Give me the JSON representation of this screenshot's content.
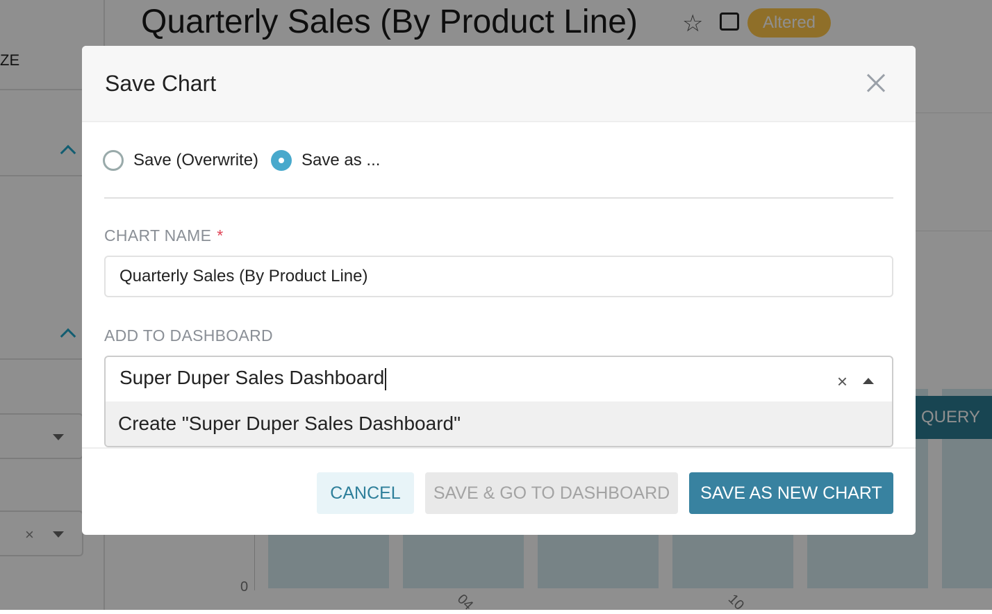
{
  "background": {
    "left_panel_text": "ZE",
    "chart_title": "Quarterly Sales (By Product Line)",
    "badge": "Altered",
    "query_button": "QUERY",
    "y_tick": "0",
    "x_ticks": [
      "04",
      "10"
    ]
  },
  "modal": {
    "title": "Save Chart",
    "radio_overwrite": "Save (Overwrite)",
    "radio_save_as": "Save as ...",
    "selected_mode": "save_as",
    "chart_name_label": "CHART NAME",
    "required_mark": "*",
    "chart_name_value": "Quarterly Sales (By Product Line)",
    "dashboard_label": "ADD TO DASHBOARD",
    "dashboard_value": "Super Duper Sales Dashboard",
    "dashboard_option": "Create \"Super Duper Sales Dashboard\"",
    "clear_icon": "×",
    "buttons": {
      "cancel": "CANCEL",
      "save_go": "SAVE & GO TO DASHBOARD",
      "save_new": "SAVE AS NEW CHART"
    }
  },
  "colors": {
    "primary": "#3882a0",
    "radio_active": "#48a9cc",
    "badge": "#ffc74a",
    "required": "#e04355"
  }
}
